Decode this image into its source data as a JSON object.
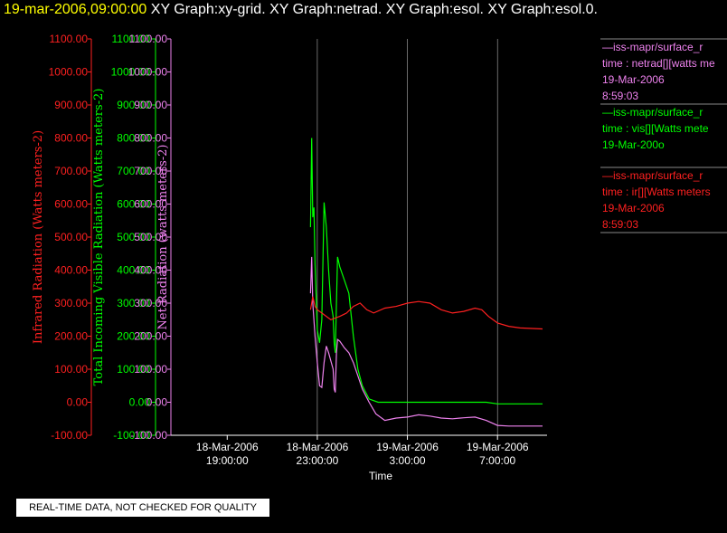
{
  "header": {
    "datetime": "19-mar-2006,09:00:00",
    "graph_titles": "XY Graph:xy-grid.  XY Graph:netrad.  XY Graph:esol.  XY Graph:esol.0."
  },
  "colors": {
    "infrared": "#ff2020",
    "visible": "#00ff00",
    "net": "#ee82ee",
    "axis_text": "#ffffff",
    "grid": "#ffffff",
    "background": "#000000"
  },
  "chart_data": {
    "type": "line",
    "xlabel": "Time",
    "x_ticks": [
      {
        "date": "18-Mar-2006",
        "time": "19:00:00",
        "hour": 0
      },
      {
        "date": "18-Mar-2006",
        "time": "23:00:00",
        "hour": 4
      },
      {
        "date": "19-Mar-2006",
        "time": "3:00:00",
        "hour": 8
      },
      {
        "date": "19-Mar-2006",
        "time": "7:00:00",
        "hour": 12
      }
    ],
    "xlim_hours": [
      -2.5,
      14.2
    ],
    "grid_hours": [
      4,
      8,
      12
    ],
    "y_axes": [
      {
        "key": "infrared",
        "label": "Infrared Radiation (Watts meters-2)",
        "ylim": [
          -100,
          1100
        ],
        "ticks": [
          "-100.00",
          "0.00",
          "100.00",
          "200.00",
          "300.00",
          "400.00",
          "500.00",
          "600.00",
          "700.00",
          "800.00",
          "900.00",
          "1000.00",
          "1100.00"
        ]
      },
      {
        "key": "visible",
        "label": "Total Incoming Visible Radiation (Watts meters-2)",
        "ylim": [
          -100,
          1100
        ],
        "ticks": [
          "-100.00",
          "0.00",
          "100.00",
          "200.00",
          "300.00",
          "400.00",
          "500.00",
          "600.00",
          "700.00",
          "800.00",
          "900.00",
          "1000.00",
          "1100.00"
        ]
      },
      {
        "key": "net",
        "label": "Net Radiation (watts meters-2)",
        "ylim": [
          -100,
          1100
        ],
        "ticks": [
          "-100.00",
          "0.00",
          "100.00",
          "200.00",
          "300.00",
          "400.00",
          "500.00",
          "600.00",
          "700.00",
          "800.00",
          "900.00",
          "1000.00",
          "1100.00"
        ]
      }
    ],
    "series": [
      {
        "key": "net",
        "points": [
          [
            3.7,
            330
          ],
          [
            3.75,
            440
          ],
          [
            3.8,
            300
          ],
          [
            3.9,
            200
          ],
          [
            4.0,
            120
          ],
          [
            4.1,
            50
          ],
          [
            4.2,
            45
          ],
          [
            4.3,
            120
          ],
          [
            4.4,
            170
          ],
          [
            4.5,
            150
          ],
          [
            4.6,
            125
          ],
          [
            4.7,
            100
          ],
          [
            4.75,
            40
          ],
          [
            4.8,
            30
          ],
          [
            4.85,
            150
          ],
          [
            4.9,
            190
          ],
          [
            5.0,
            185
          ],
          [
            5.2,
            165
          ],
          [
            5.4,
            150
          ],
          [
            5.6,
            120
          ],
          [
            5.8,
            80
          ],
          [
            6.0,
            40
          ],
          [
            6.3,
            0
          ],
          [
            6.6,
            -35
          ],
          [
            7.0,
            -55
          ],
          [
            7.5,
            -48
          ],
          [
            8.0,
            -45
          ],
          [
            8.5,
            -38
          ],
          [
            9.0,
            -42
          ],
          [
            9.5,
            -48
          ],
          [
            10.0,
            -50
          ],
          [
            10.5,
            -47
          ],
          [
            11.0,
            -45
          ],
          [
            11.5,
            -55
          ],
          [
            12.0,
            -70
          ],
          [
            12.5,
            -72
          ],
          [
            13.0,
            -72
          ],
          [
            14.0,
            -72
          ]
        ]
      },
      {
        "key": "visible",
        "points": [
          [
            3.7,
            530
          ],
          [
            3.75,
            800
          ],
          [
            3.8,
            560
          ],
          [
            3.85,
            590
          ],
          [
            3.9,
            420
          ],
          [
            4.0,
            220
          ],
          [
            4.1,
            180
          ],
          [
            4.2,
            250
          ],
          [
            4.3,
            605
          ],
          [
            4.4,
            530
          ],
          [
            4.5,
            400
          ],
          [
            4.6,
            300
          ],
          [
            4.7,
            260
          ],
          [
            4.75,
            180
          ],
          [
            4.8,
            150
          ],
          [
            4.9,
            440
          ],
          [
            5.0,
            410
          ],
          [
            5.2,
            370
          ],
          [
            5.4,
            330
          ],
          [
            5.6,
            200
          ],
          [
            5.8,
            100
          ],
          [
            6.0,
            50
          ],
          [
            6.3,
            10
          ],
          [
            6.7,
            0
          ],
          [
            7.5,
            0
          ],
          [
            8.5,
            0
          ],
          [
            9.5,
            0
          ],
          [
            10.5,
            0
          ],
          [
            11.5,
            0
          ],
          [
            12.0,
            -5
          ],
          [
            13.0,
            -5
          ],
          [
            14.0,
            -5
          ]
        ]
      },
      {
        "key": "infrared",
        "points": [
          [
            3.7,
            280
          ],
          [
            3.8,
            320
          ],
          [
            3.9,
            290
          ],
          [
            4.0,
            280
          ],
          [
            4.2,
            270
          ],
          [
            4.4,
            260
          ],
          [
            4.6,
            250
          ],
          [
            4.8,
            255
          ],
          [
            5.0,
            260
          ],
          [
            5.3,
            270
          ],
          [
            5.6,
            290
          ],
          [
            5.9,
            300
          ],
          [
            6.2,
            280
          ],
          [
            6.5,
            270
          ],
          [
            7.0,
            285
          ],
          [
            7.5,
            290
          ],
          [
            8.0,
            300
          ],
          [
            8.5,
            305
          ],
          [
            9.0,
            300
          ],
          [
            9.5,
            280
          ],
          [
            10.0,
            270
          ],
          [
            10.5,
            275
          ],
          [
            11.0,
            285
          ],
          [
            11.3,
            280
          ],
          [
            11.6,
            260
          ],
          [
            12.0,
            240
          ],
          [
            12.5,
            230
          ],
          [
            13.0,
            225
          ],
          [
            14.0,
            222
          ]
        ]
      }
    ]
  },
  "legend": [
    {
      "key": "net",
      "line1": "—iss-mapr/surface_r",
      "line2": "time : netrad[][watts me",
      "line3": "19-Mar-2006",
      "line4": "8:59:03"
    },
    {
      "key": "visible",
      "line1": "—iss-mapr/surface_r",
      "line2": "time : vis[][Watts mete",
      "line3": "19-Mar-200o",
      "line4": ""
    },
    {
      "key": "infrared",
      "line1": "—iss-mapr/surface_r",
      "line2": "time : ir[][Watts meters",
      "line3": "19-Mar-2006",
      "line4": "8:59:03"
    }
  ],
  "footer": {
    "qc_note": "REAL-TIME DATA, NOT CHECKED FOR QUALITY"
  }
}
